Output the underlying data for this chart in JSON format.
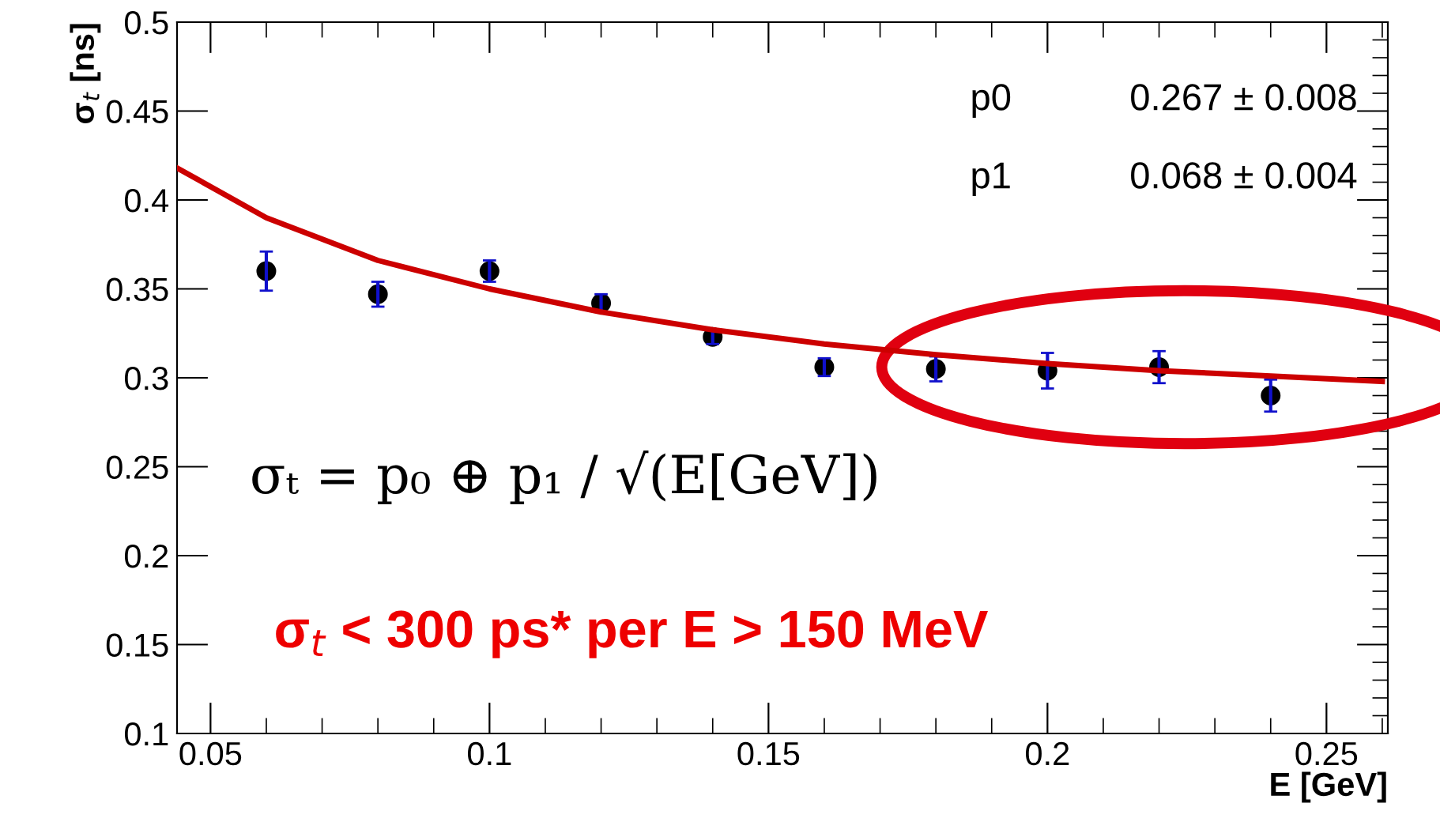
{
  "chart_data": {
    "type": "scatter",
    "xlabel": "E [GeV]",
    "ylabel": "σ$_{t}$ [ns]",
    "xlim": [
      0.044,
      0.261
    ],
    "ylim": [
      0.1,
      0.5
    ],
    "xticks": [
      0.05,
      0.1,
      0.15,
      0.2,
      0.25
    ],
    "yticks": [
      0.1,
      0.15,
      0.2,
      0.25,
      0.3,
      0.35,
      0.4,
      0.45,
      0.5
    ],
    "grid": false,
    "legend": false,
    "series": [
      {
        "marker": "circle",
        "color": "#000000",
        "x": [
          0.06,
          0.08,
          0.1,
          0.12,
          0.14,
          0.16,
          0.18,
          0.2,
          0.22,
          0.24
        ],
        "values": [
          0.36,
          0.347,
          0.36,
          0.342,
          0.323,
          0.306,
          0.305,
          0.304,
          0.306,
          0.29
        ],
        "errors": [
          0.011,
          0.007,
          0.006,
          0.005,
          0.004,
          0.005,
          0.007,
          0.01,
          0.009,
          0.009
        ]
      },
      {
        "type": "line",
        "marker": "none",
        "color": "#cc0000",
        "line_style": "solid",
        "x": [
          0.044,
          0.06,
          0.08,
          0.1,
          0.12,
          0.14,
          0.16,
          0.18,
          0.2,
          0.22,
          0.24,
          0.26
        ],
        "values": [
          0.418,
          0.39,
          0.366,
          0.35,
          0.337,
          0.327,
          0.319,
          0.313,
          0.308,
          0.304,
          0.301,
          0.298
        ]
      }
    ],
    "annotations": [
      "p0",
      "0.267 ± 0.008",
      "p1",
      "0.068 ± 0.004",
      "σₜ = p₀ ⊕ p₁ / √(E[GeV])",
      "σ$_{t}$ < 300 ps* per E > 150 MeV"
    ]
  }
}
